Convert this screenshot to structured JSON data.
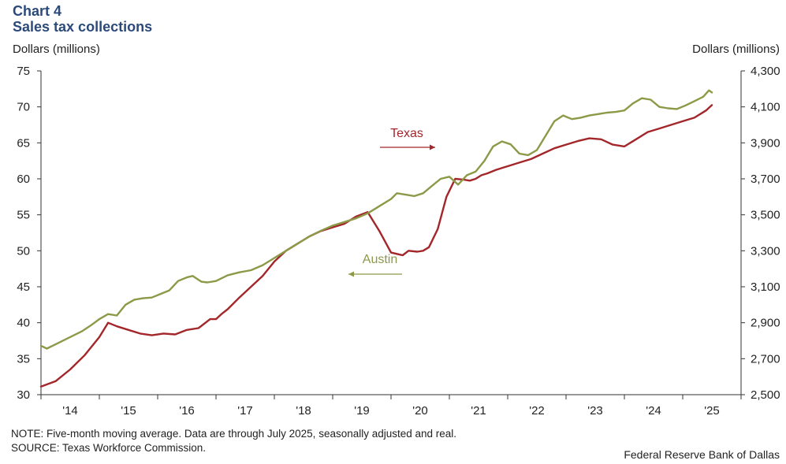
{
  "header": {
    "label": "Chart 4",
    "title": "Sales tax collections"
  },
  "footer": {
    "note": "NOTE: Five-month moving average. Data are through July 2025, seasonally adjusted and real.",
    "source": "SOURCE: Texas Workforce Commission.",
    "credit": "Federal Reserve Bank of Dallas"
  },
  "colors": {
    "texas": "#a3262a",
    "austin": "#8c9a48",
    "title": "#2b4a7a",
    "axis": "#333333"
  },
  "chart_data": {
    "type": "line",
    "title": "Sales tax collections",
    "ylabel": "Dollars (millions)",
    "y2label": "Dollars (millions)",
    "ylim": [
      30,
      75
    ],
    "y2lim": [
      2500,
      4300
    ],
    "yticks": [
      30,
      35,
      40,
      45,
      50,
      55,
      60,
      65,
      70,
      75
    ],
    "y2ticks": [
      2500,
      2700,
      2900,
      3100,
      3300,
      3500,
      3700,
      3900,
      4100,
      4300
    ],
    "y2tick_labels": [
      "2,500",
      "2,700",
      "2,900",
      "3,100",
      "3,300",
      "3,500",
      "3,700",
      "3,900",
      "4,100",
      "4,300"
    ],
    "xlim": [
      2014.0,
      2026.0
    ],
    "xticks": [
      2014.5,
      2015.5,
      2016.5,
      2017.5,
      2018.5,
      2019.5,
      2020.5,
      2021.5,
      2022.5,
      2023.5,
      2024.5,
      2025.5
    ],
    "xtick_labels": [
      "'14",
      "'15",
      "'16",
      "'17",
      "'18",
      "'19",
      "'20",
      "'21",
      "'22",
      "'23",
      "'24",
      "'25"
    ],
    "grid": false,
    "series": [
      {
        "name": "Texas",
        "axis": "right",
        "x": [
          2014.0,
          2014.25,
          2014.5,
          2014.75,
          2015.0,
          2015.15,
          2015.3,
          2015.5,
          2015.7,
          2015.9,
          2016.1,
          2016.3,
          2016.5,
          2016.7,
          2016.9,
          2017.0,
          2017.1,
          2017.2,
          2017.4,
          2017.6,
          2017.8,
          2018.0,
          2018.2,
          2018.4,
          2018.6,
          2018.8,
          2019.0,
          2019.2,
          2019.4,
          2019.6,
          2019.8,
          2020.0,
          2020.2,
          2020.3,
          2020.45,
          2020.55,
          2020.65,
          2020.8,
          2020.95,
          2021.1,
          2021.25,
          2021.35,
          2021.45,
          2021.55,
          2021.65,
          2021.8,
          2022.0,
          2022.2,
          2022.4,
          2022.6,
          2022.8,
          2023.0,
          2023.2,
          2023.4,
          2023.6,
          2023.8,
          2024.0,
          2024.2,
          2024.4,
          2024.6,
          2024.8,
          2025.0,
          2025.2,
          2025.4,
          2025.5
        ],
        "values": [
          2545,
          2575,
          2640,
          2720,
          2820,
          2900,
          2880,
          2860,
          2840,
          2830,
          2840,
          2835,
          2860,
          2870,
          2920,
          2920,
          2950,
          2975,
          3040,
          3100,
          3160,
          3240,
          3300,
          3340,
          3380,
          3410,
          3430,
          3450,
          3490,
          3515,
          3410,
          3290,
          3275,
          3300,
          3295,
          3300,
          3320,
          3420,
          3600,
          3700,
          3695,
          3690,
          3700,
          3720,
          3730,
          3750,
          3770,
          3790,
          3810,
          3840,
          3870,
          3890,
          3910,
          3925,
          3920,
          3890,
          3880,
          3920,
          3960,
          3980,
          4000,
          4020,
          4040,
          4080,
          4110
        ]
      },
      {
        "name": "Austin",
        "axis": "left",
        "x": [
          2014.0,
          2014.1,
          2014.25,
          2014.4,
          2014.55,
          2014.7,
          2014.85,
          2015.0,
          2015.15,
          2015.3,
          2015.45,
          2015.6,
          2015.75,
          2015.9,
          2016.05,
          2016.2,
          2016.35,
          2016.5,
          2016.6,
          2016.75,
          2016.85,
          2017.0,
          2017.2,
          2017.4,
          2017.6,
          2017.8,
          2018.0,
          2018.2,
          2018.4,
          2018.6,
          2018.8,
          2019.0,
          2019.2,
          2019.4,
          2019.6,
          2019.8,
          2020.0,
          2020.1,
          2020.25,
          2020.4,
          2020.55,
          2020.7,
          2020.85,
          2021.0,
          2021.15,
          2021.3,
          2021.45,
          2021.6,
          2021.75,
          2021.9,
          2022.05,
          2022.2,
          2022.35,
          2022.5,
          2022.65,
          2022.8,
          2022.95,
          2023.1,
          2023.25,
          2023.4,
          2023.55,
          2023.7,
          2023.85,
          2024.0,
          2024.15,
          2024.3,
          2024.45,
          2024.6,
          2024.75,
          2024.9,
          2025.05,
          2025.2,
          2025.35,
          2025.45,
          2025.5
        ],
        "values": [
          36.8,
          36.4,
          37.0,
          37.6,
          38.2,
          38.8,
          39.6,
          40.5,
          41.2,
          41.0,
          42.5,
          43.2,
          43.4,
          43.5,
          44.0,
          44.5,
          45.8,
          46.3,
          46.5,
          45.7,
          45.6,
          45.8,
          46.6,
          47.0,
          47.3,
          48.0,
          49.0,
          50.0,
          51.0,
          52.0,
          52.8,
          53.5,
          54.0,
          54.5,
          55.2,
          56.2,
          57.2,
          58.0,
          57.8,
          57.6,
          58.0,
          59.0,
          60.0,
          60.3,
          59.2,
          60.5,
          61.0,
          62.5,
          64.5,
          65.2,
          64.8,
          63.5,
          63.3,
          64.0,
          66.0,
          68.0,
          68.8,
          68.3,
          68.5,
          68.8,
          69.0,
          69.2,
          69.3,
          69.5,
          70.5,
          71.2,
          71.0,
          70.0,
          69.8,
          69.7,
          70.2,
          70.8,
          71.4,
          72.3,
          72.0
        ]
      }
    ],
    "annotations": [
      {
        "text": "Texas",
        "series": "Texas",
        "arrow": "right"
      },
      {
        "text": "Austin",
        "series": "Austin",
        "arrow": "left"
      }
    ]
  }
}
